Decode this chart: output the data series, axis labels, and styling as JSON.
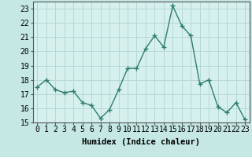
{
  "x": [
    0,
    1,
    2,
    3,
    4,
    5,
    6,
    7,
    8,
    9,
    10,
    11,
    12,
    13,
    14,
    15,
    16,
    17,
    18,
    19,
    20,
    21,
    22,
    23
  ],
  "y": [
    17.5,
    18.0,
    17.3,
    17.1,
    17.2,
    16.4,
    16.2,
    15.3,
    15.9,
    17.3,
    18.8,
    18.8,
    20.2,
    21.1,
    20.3,
    23.2,
    21.8,
    21.1,
    17.7,
    18.0,
    16.1,
    15.7,
    16.4,
    15.2
  ],
  "xlabel": "Humidex (Indice chaleur)",
  "ylim": [
    15,
    23.5
  ],
  "yticks": [
    15,
    16,
    17,
    18,
    19,
    20,
    21,
    22,
    23
  ],
  "xlim": [
    -0.5,
    23.5
  ],
  "xticks": [
    0,
    1,
    2,
    3,
    4,
    5,
    6,
    7,
    8,
    9,
    10,
    11,
    12,
    13,
    14,
    15,
    16,
    17,
    18,
    19,
    20,
    21,
    22,
    23
  ],
  "line_color": "#2e7d6e",
  "marker_color": "#2e7d6e",
  "bg_color": "#c5e8e5",
  "grid_color": "#b8d8d5",
  "plot_bg_color": "#d5f0ed",
  "label_fontsize": 7.5,
  "tick_fontsize": 7
}
